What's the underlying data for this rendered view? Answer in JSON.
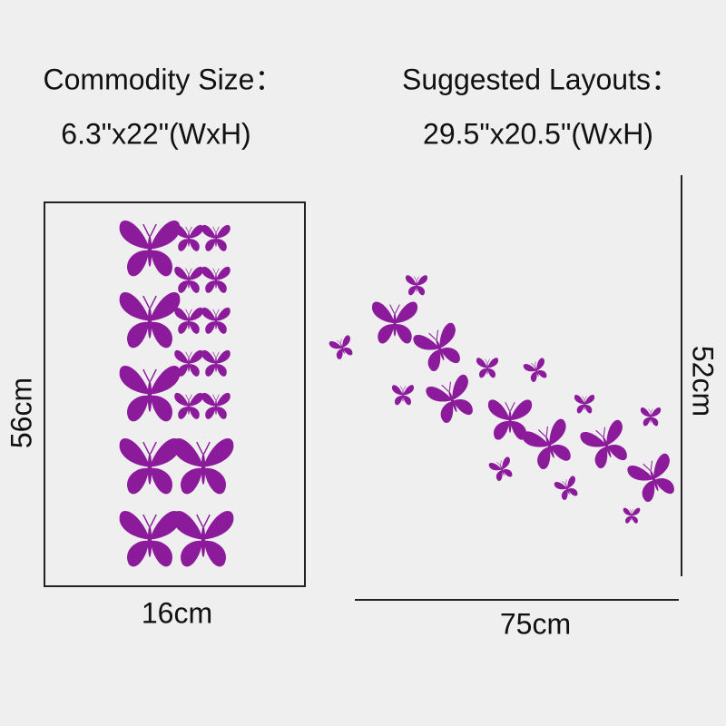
{
  "commodity": {
    "title": "Commodity Size：",
    "size": "6.3\"x22\"(WxH)",
    "height": "56cm",
    "width": "16cm"
  },
  "layout": {
    "title": "Suggested Layouts：",
    "size": "29.5\"x20.5\"(WxH)",
    "height": "52cm",
    "width": "75cm"
  }
}
